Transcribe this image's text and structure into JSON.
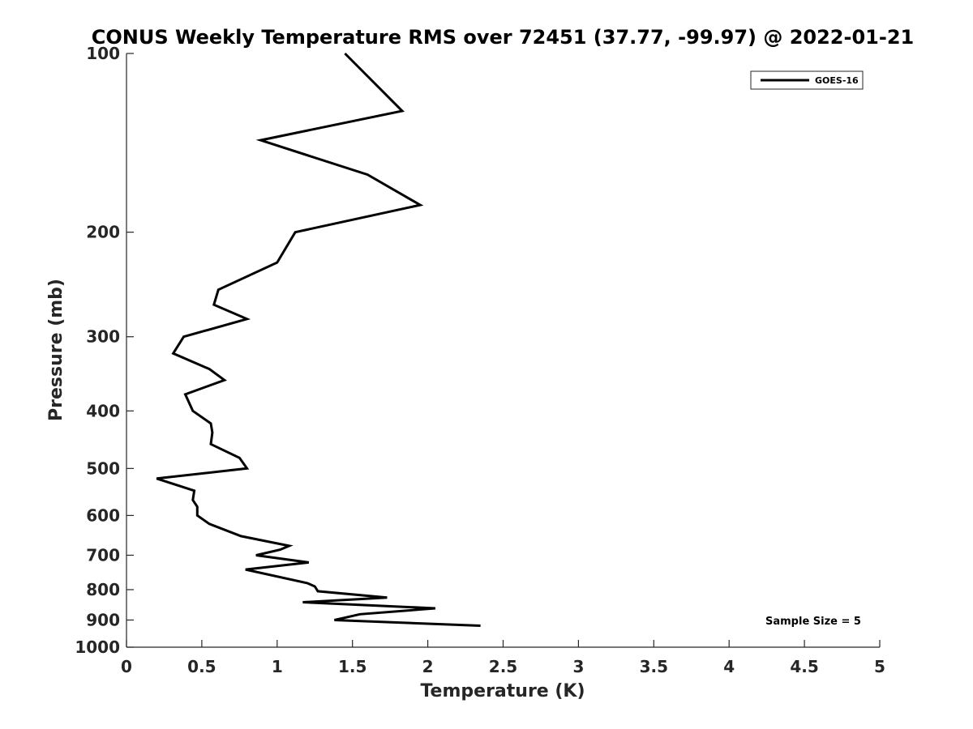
{
  "chart_data": {
    "type": "line",
    "title": "CONUS Weekly Temperature RMS over 72451 (37.77, -99.97) @ 2022-01-21",
    "xlabel": "Temperature (K)",
    "ylabel": "Pressure (mb)",
    "xlim": [
      0,
      5
    ],
    "ylim": [
      100,
      1000
    ],
    "yscale": "log",
    "y_reversed": true,
    "grid": false,
    "legend_position": "top-right",
    "x_ticks": [
      "0",
      "0.5",
      "1",
      "1.5",
      "2",
      "2.5",
      "3",
      "3.5",
      "4",
      "4.5",
      "5"
    ],
    "y_ticks": [
      "100",
      "200",
      "300",
      "400",
      "500",
      "600",
      "700",
      "800",
      "900",
      "1000"
    ],
    "annotation": "Sample Size = 5",
    "series": [
      {
        "name": "GOES-16",
        "color": "#000000",
        "points": [
          [
            1.45,
            100
          ],
          [
            1.83,
            125
          ],
          [
            0.89,
            140
          ],
          [
            1.6,
            160
          ],
          [
            1.95,
            180
          ],
          [
            1.12,
            200
          ],
          [
            1.0,
            225
          ],
          [
            0.61,
            250
          ],
          [
            0.58,
            265
          ],
          [
            0.8,
            280
          ],
          [
            0.38,
            300
          ],
          [
            0.31,
            320
          ],
          [
            0.55,
            340
          ],
          [
            0.65,
            355
          ],
          [
            0.39,
            375
          ],
          [
            0.44,
            400
          ],
          [
            0.56,
            420
          ],
          [
            0.57,
            435
          ],
          [
            0.56,
            455
          ],
          [
            0.75,
            480
          ],
          [
            0.8,
            500
          ],
          [
            0.2,
            520
          ],
          [
            0.45,
            545
          ],
          [
            0.44,
            565
          ],
          [
            0.47,
            580
          ],
          [
            0.47,
            600
          ],
          [
            0.55,
            620
          ],
          [
            0.76,
            650
          ],
          [
            1.08,
            675
          ],
          [
            1.02,
            685
          ],
          [
            0.86,
            700
          ],
          [
            1.21,
            720
          ],
          [
            0.79,
            740
          ],
          [
            1.2,
            780
          ],
          [
            1.25,
            790
          ],
          [
            1.27,
            805
          ],
          [
            1.73,
            825
          ],
          [
            1.17,
            840
          ],
          [
            2.05,
            860
          ],
          [
            1.55,
            880
          ],
          [
            1.38,
            900
          ],
          [
            2.35,
            920
          ]
        ]
      }
    ]
  }
}
